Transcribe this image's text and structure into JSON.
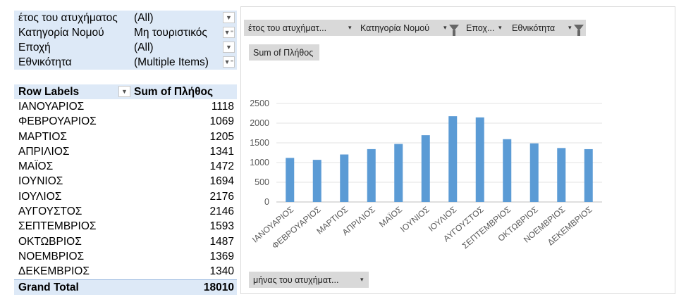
{
  "pivot": {
    "filters": [
      {
        "name": "έτος του ατυχήματος",
        "value": "(All)",
        "filtered": false
      },
      {
        "name": "Κατηγορία Νομού",
        "value": "Μη τουριστικός",
        "filtered": true
      },
      {
        "name": "Εποχή",
        "value": "(All)",
        "filtered": false
      },
      {
        "name": "Εθνικότητα",
        "value": "(Multiple Items)",
        "filtered": true
      }
    ],
    "row_labels_header": "Row Labels",
    "values_header": "Sum of Πλήθος",
    "rows": [
      {
        "label": "ΙΑΝΟΥΑΡΙΟΣ",
        "value": "1118"
      },
      {
        "label": "ΦΕΒΡΟΥΑΡΙΟΣ",
        "value": "1069"
      },
      {
        "label": "ΜΑΡΤΙΟΣ",
        "value": "1205"
      },
      {
        "label": "ΑΠΡΙΛΙΟΣ",
        "value": "1341"
      },
      {
        "label": "ΜΑΪΟΣ",
        "value": "1472"
      },
      {
        "label": "ΙΟΥΝΙΟΣ",
        "value": "1694"
      },
      {
        "label": "ΙΟΥΛΙΟΣ",
        "value": "2176"
      },
      {
        "label": "ΑΥΓΟΥΣΤΟΣ",
        "value": "2146"
      },
      {
        "label": "ΣΕΠΤΕΜΒΡΙΟΣ",
        "value": "1593"
      },
      {
        "label": "ΟΚΤΩΒΡΙΟΣ",
        "value": "1487"
      },
      {
        "label": "ΝΟΕΜΒΡΙΟΣ",
        "value": "1369"
      },
      {
        "label": "ΔΕΚΕΜΒΡΙΟΣ",
        "value": "1340"
      }
    ],
    "grand_total_label": "Grand Total",
    "grand_total_value": "18010"
  },
  "chart_buttons": {
    "filter1": "έτος του ατυχήματ...",
    "filter2": "Κατηγορία Νομού",
    "filter3": "Εποχ...",
    "filter4": "Εθνικότητα",
    "values": "Sum of Πλήθος",
    "axis": "μήνας του ατυχήματ..."
  },
  "colors": {
    "bar": "#5b9bd5",
    "pivot_header": "#dde9f7"
  },
  "chart_data": {
    "type": "bar",
    "categories": [
      "ΙΑΝΟΥΑΡΙΟΣ",
      "ΦΕΒΡΟΥΑΡΙΟΣ",
      "ΜΑΡΤΙΟΣ",
      "ΑΠΡΙΛΙΟΣ",
      "ΜΑΪΟΣ",
      "ΙΟΥΝΙΟΣ",
      "ΙΟΥΛΙΟΣ",
      "ΑΥΓΟΥΣΤΟΣ",
      "ΣΕΠΤΕΜΒΡΙΟΣ",
      "ΟΚΤΩΒΡΙΟΣ",
      "ΝΟΕΜΒΡΙΟΣ",
      "ΔΕΚΕΜΒΡΙΟΣ"
    ],
    "values": [
      1118,
      1069,
      1205,
      1341,
      1472,
      1694,
      2176,
      2146,
      1593,
      1487,
      1369,
      1340
    ],
    "yticks": [
      0,
      500,
      1000,
      1500,
      2000,
      2500
    ],
    "ylim": [
      0,
      2500
    ],
    "grid": true,
    "legend": "none"
  }
}
